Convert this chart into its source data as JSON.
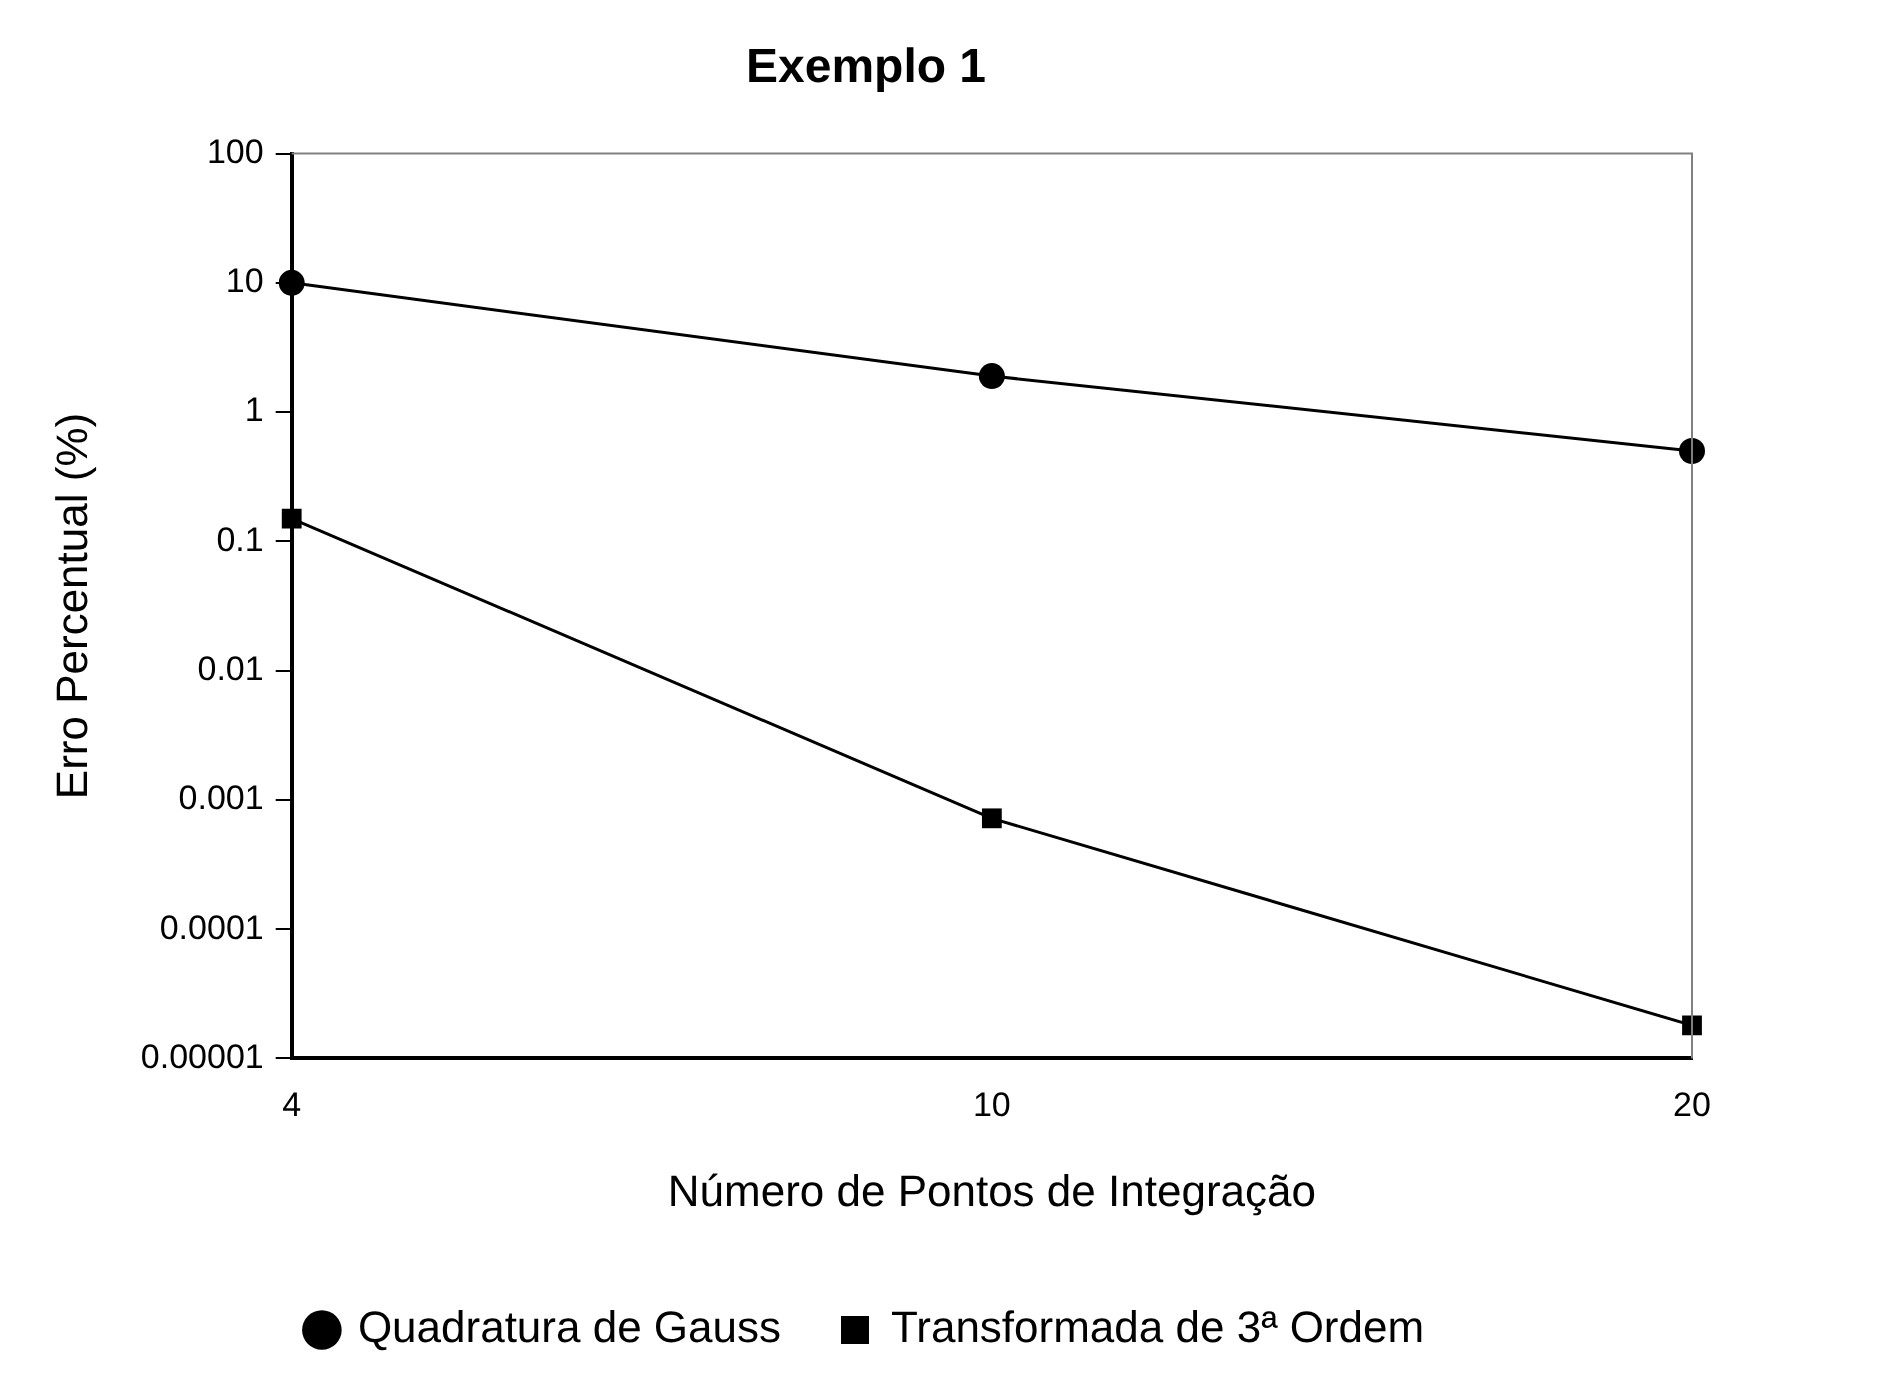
{
  "chart_data": {
    "type": "line",
    "title": "Exemplo 1",
    "xlabel": "Número de Pontos de Integração",
    "ylabel": "Erro Percentual (%)",
    "categories": [
      "4",
      "10",
      "20"
    ],
    "series": [
      {
        "name": "Quadratura de Gauss",
        "color": "#000000",
        "marker": "circle",
        "values": [
          10,
          1.9,
          0.5
        ]
      },
      {
        "name": "Transformada de 3ª Ordem",
        "color": "#000000",
        "marker": "square",
        "values": [
          0.15,
          0.00072,
          1.8e-05
        ]
      }
    ],
    "log": "y",
    "ylim": [
      1e-05,
      100
    ],
    "yticks": [
      {
        "value": 1e-05,
        "label": "0.00001"
      },
      0.0001,
      0.001,
      0.01,
      0.1,
      1,
      10,
      100
    ],
    "grid": false,
    "legend": "bottom",
    "line_style": "solid"
  }
}
